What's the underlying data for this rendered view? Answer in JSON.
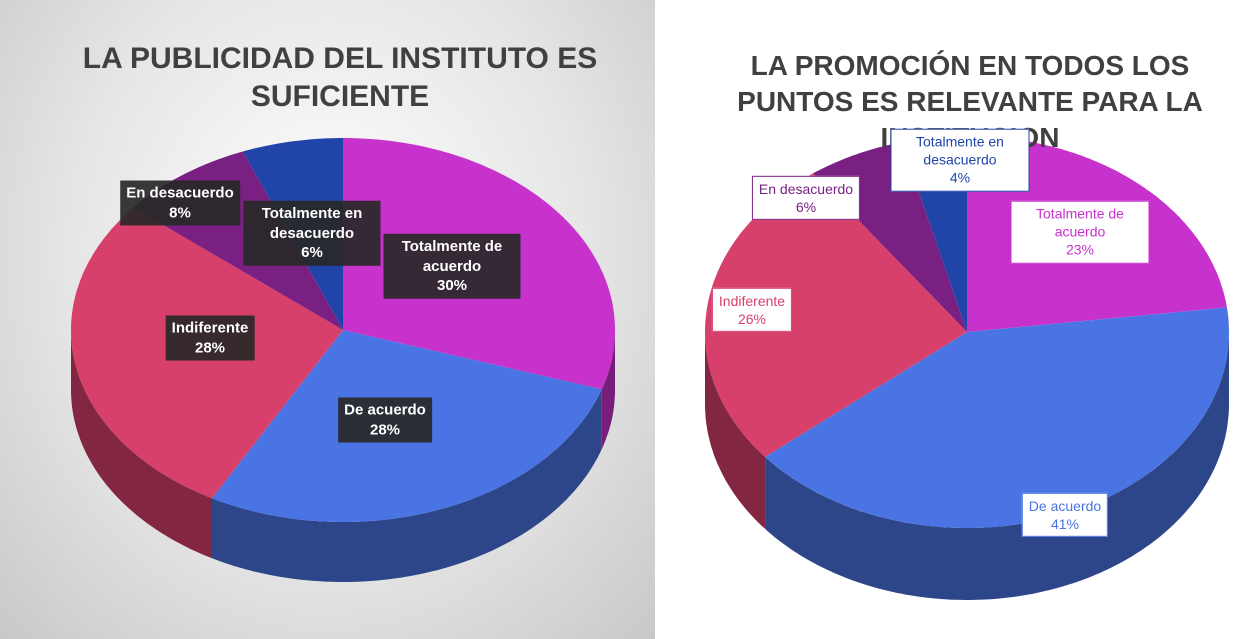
{
  "chart_data": [
    {
      "type": "pie",
      "title": "LA PUBLICIDAD DEL INSTITUTO ES SUFICIENTE",
      "categories": [
        "Totalmente de acuerdo",
        "De acuerdo",
        "Indiferente",
        "En desacuerdo",
        "Totalmente en desacuerdo"
      ],
      "values": [
        30,
        28,
        28,
        8,
        6
      ],
      "value_labels": [
        "30%",
        "28%",
        "28%",
        "8%",
        "6%"
      ],
      "colors": [
        "#c832cc",
        "#4a74e4",
        "#d8406c",
        "#7a2082",
        "#2044a8"
      ]
    },
    {
      "type": "pie",
      "title": "LA PROMOCIÓN EN TODOS LOS PUNTOS ES RELEVANTE PARA LA INSTITUCION",
      "categories": [
        "Totalmente de acuerdo",
        "De acuerdo",
        "Indiferente",
        "En desacuerdo",
        "Totalmente en desacuerdo"
      ],
      "values": [
        23,
        41,
        26,
        6,
        4
      ],
      "value_labels": [
        "23%",
        "41%",
        "26%",
        "6%",
        "4%"
      ],
      "colors": [
        "#c832cc",
        "#4a74e4",
        "#d8406c",
        "#7a2082",
        "#2044a8"
      ]
    }
  ]
}
